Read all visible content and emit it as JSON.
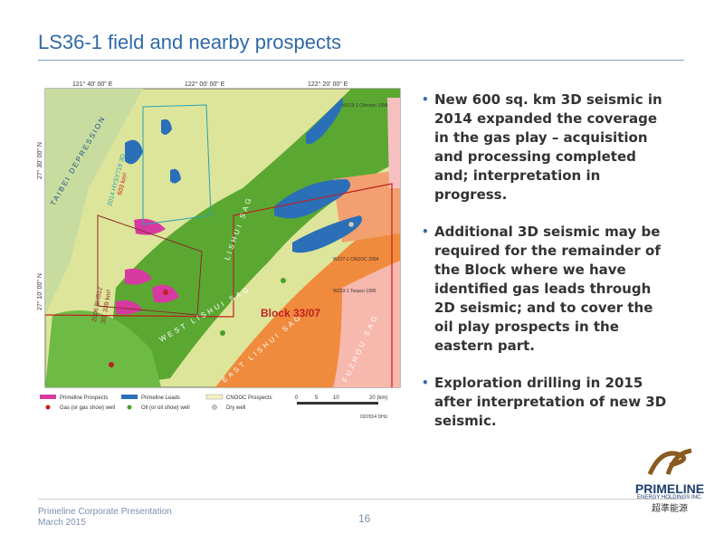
{
  "title": "LS36-1 field and nearby prospects",
  "bullets": [
    "New 600 sq. km 3D seismic in 2014 expanded the coverage in the gas play – acquisition and processing completed and; interpretation in progress.",
    "Additional 3D seismic may be required for the remainder of the Block where we have identified gas leads through 2D seismic; and to cover the oil play prospects in the eastern part.",
    "Exploration drilling in 2015 after interpretation of new 3D seismic."
  ],
  "map": {
    "longitudes": [
      "121° 40' 00\" E",
      "122° 00' 00\" E",
      "122° 20' 00\" E"
    ],
    "latitudes": [
      "27° 30' 00\" N",
      "27° 10' 00\" N"
    ],
    "labels": [
      "TAIBEI DEPRESSION",
      "2014 HYSY718 3D",
      "603 km²",
      "2006 BH512",
      "3D, 339 km²",
      "LISHUI SAG",
      "WEST LISHUI SAG",
      "EAST LISHUI SAG",
      "FUZHOU SAG",
      "Block 33/07",
      "WZ13-1 Chevron 1995",
      "WZ27-1 CNOOC 2004",
      "WZ33-1 Texaco 1995"
    ],
    "legend": [
      "Primeline Prospects",
      "Primeline Leads",
      "CNOOC Prospects",
      "Gas (or gas show) well",
      "Oil (or oil show) well",
      "Dry well"
    ],
    "scale": [
      "0",
      "5",
      "10",
      "20 (km)"
    ],
    "credit": "03/2014 DHU"
  },
  "footer": {
    "company": "Primeline Corporate Presentation",
    "date": "March 2015",
    "page": "16"
  },
  "logo": {
    "name": "PRIMELINE",
    "subtitle": "ENERGY HOLDINGS INC.",
    "chinese": "超準能源"
  }
}
